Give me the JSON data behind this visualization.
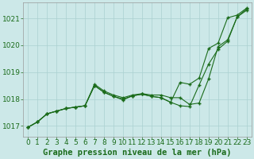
{
  "background_color": "#cce8e8",
  "grid_color": "#aad0d0",
  "line_color": "#1a6b1a",
  "text_color": "#1a6b1a",
  "title": "Graphe pression niveau de la mer (hPa)",
  "title_fontsize": 7.5,
  "tick_fontsize": 6.5,
  "xlim": [
    -0.5,
    23.5
  ],
  "ylim": [
    1016.6,
    1021.6
  ],
  "yticks": [
    1017,
    1018,
    1019,
    1020,
    1021
  ],
  "xticks": [
    0,
    1,
    2,
    3,
    4,
    5,
    6,
    7,
    8,
    9,
    10,
    11,
    12,
    13,
    14,
    15,
    16,
    17,
    18,
    19,
    20,
    21,
    22,
    23
  ],
  "series1_x": [
    0,
    1,
    2,
    3,
    4,
    5,
    6,
    7,
    8,
    9,
    10,
    11,
    12,
    13,
    14,
    15,
    16,
    17,
    18,
    19,
    20,
    21,
    22,
    23
  ],
  "series1_y": [
    1016.95,
    1017.15,
    1017.45,
    1017.55,
    1017.65,
    1017.7,
    1017.75,
    1018.55,
    1018.3,
    1018.15,
    1018.05,
    1018.15,
    1018.2,
    1018.15,
    1018.15,
    1018.05,
    1018.05,
    1017.8,
    1017.85,
    1018.75,
    1019.95,
    1020.2,
    1021.05,
    1021.35
  ],
  "series2_x": [
    0,
    1,
    2,
    3,
    4,
    5,
    6,
    7,
    8,
    9,
    10,
    11,
    12,
    13,
    14,
    15,
    16,
    17,
    18,
    19,
    20,
    21,
    22,
    23
  ],
  "series2_y": [
    1016.95,
    1017.15,
    1017.45,
    1017.55,
    1017.65,
    1017.7,
    1017.75,
    1018.5,
    1018.25,
    1018.1,
    1017.97,
    1018.12,
    1018.18,
    1018.1,
    1018.05,
    1017.88,
    1017.75,
    1017.72,
    1018.52,
    1019.3,
    1019.85,
    1020.15,
    1021.05,
    1021.3
  ],
  "series3_x": [
    0,
    1,
    2,
    3,
    4,
    5,
    6,
    7,
    8,
    9,
    10,
    11,
    12,
    13,
    14,
    15,
    16,
    17,
    18,
    19,
    20,
    21,
    22,
    23
  ],
  "series3_y": [
    1016.95,
    1017.15,
    1017.45,
    1017.55,
    1017.65,
    1017.7,
    1017.75,
    1018.5,
    1018.25,
    1018.1,
    1018.0,
    1018.12,
    1018.18,
    1018.1,
    1018.05,
    1017.88,
    1018.62,
    1018.55,
    1018.78,
    1019.88,
    1020.08,
    1021.02,
    1021.12,
    1021.38
  ]
}
